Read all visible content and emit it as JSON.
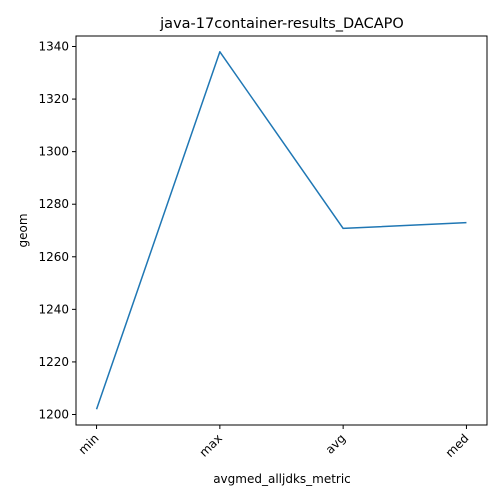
{
  "chart_data": {
    "type": "line",
    "title": "java-17container-results_DACAPO",
    "xlabel": "avgmed_alljdks_metric",
    "ylabel": "geom",
    "categories": [
      "min",
      "max",
      "avg",
      "med"
    ],
    "series": [
      {
        "values": [
          1202,
          1338,
          1270.8,
          1273
        ]
      }
    ],
    "ylim": [
      1196,
      1344
    ],
    "yticks": [
      1200,
      1220,
      1240,
      1260,
      1280,
      1300,
      1320,
      1340
    ],
    "grid": false,
    "colors": {
      "line": "#1f77b4"
    }
  }
}
